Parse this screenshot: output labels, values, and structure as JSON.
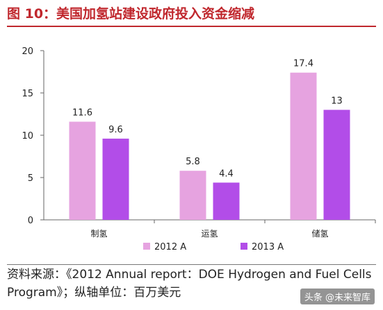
{
  "figure": {
    "title": "图 10：美国加氢站建设政府投入资金缩减",
    "source": "资料来源：《2012 Annual report：DOE Hydrogen and Fuel Cells Program》；纵轴单位：百万美元",
    "watermark": "头条 @未来智库"
  },
  "colors": {
    "title": "#c0272d",
    "series_2012": "#e6a3e0",
    "series_2013": "#b24de8"
  },
  "chart_data": {
    "type": "bar",
    "categories": [
      "制氢",
      "运氢",
      "储氢"
    ],
    "series": [
      {
        "name": "2012 A",
        "values": [
          11.6,
          5.8,
          17.4
        ],
        "labels": [
          "11.6",
          "5.8",
          "17.4"
        ]
      },
      {
        "name": "2013 A",
        "values": [
          9.6,
          4.4,
          13
        ],
        "labels": [
          "9.6",
          "4.4",
          "13"
        ]
      }
    ],
    "ylim": [
      0,
      20
    ],
    "yticks": [
      0,
      5,
      10,
      15,
      20
    ],
    "xlabel": "",
    "ylabel": "",
    "grid": false,
    "legend_position": "bottom"
  }
}
